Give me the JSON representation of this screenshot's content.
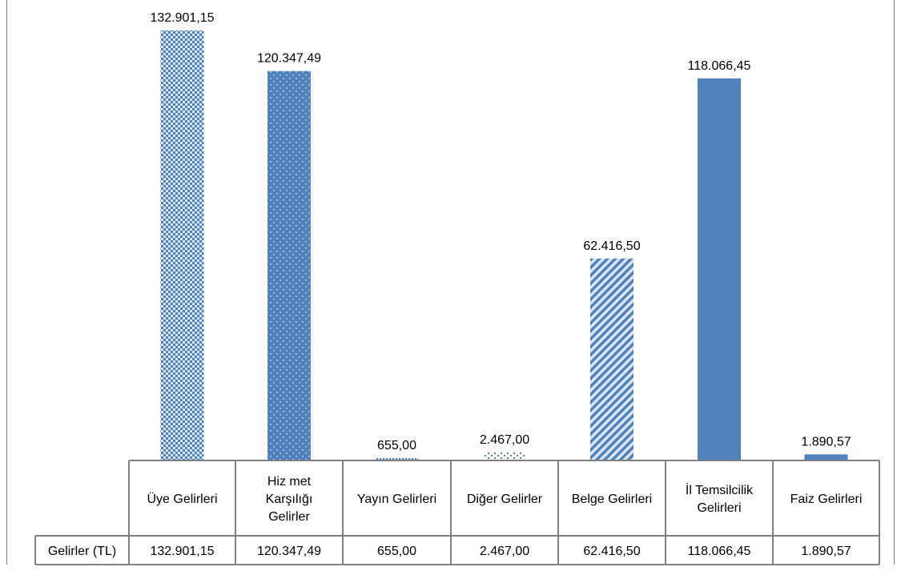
{
  "chart_data": {
    "type": "bar",
    "categories": [
      [
        "Üye Gelirleri"
      ],
      [
        "Hiz met",
        "Karşılığı",
        "Gelirler"
      ],
      [
        "Yayın Gelirleri"
      ],
      [
        "Diğer Gelirler"
      ],
      [
        "Belge Gelirleri"
      ],
      [
        "İl Temsilcilik",
        "Gelirleri"
      ],
      [
        "Faiz Gelirleri"
      ]
    ],
    "series": [
      {
        "name": "Gelirler (TL)",
        "values": [
          132901.15,
          120347.49,
          655.0,
          2467.0,
          62416.5,
          118066.45,
          1890.57
        ],
        "labels": [
          "132.901,15",
          "120.347,49",
          "655,00",
          "2.467,00",
          "62.416,50",
          "118.066,45",
          "1.890,57"
        ]
      }
    ],
    "ylim": [
      0,
      132901.15
    ],
    "colors": {
      "bar": "#4F81BD",
      "pattern_light": "#DCE6F2",
      "border": "#7F7F7F"
    },
    "data_table": true,
    "grid": false
  }
}
